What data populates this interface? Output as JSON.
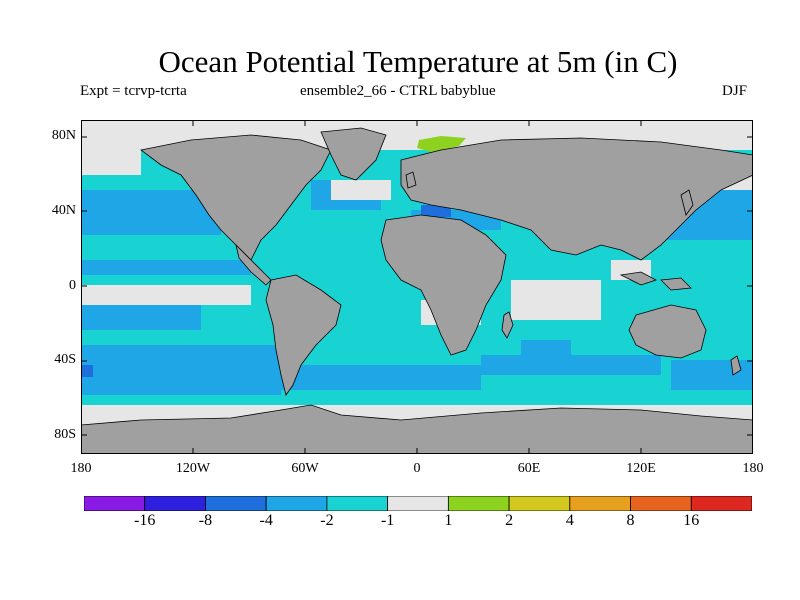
{
  "title": "Ocean Potential Temperature at 5m (in C)",
  "subtitle_left": "Expt = tcrvp-tcrta",
  "subtitle_center": "ensemble2_66 - CTRL babyblue",
  "subtitle_right": "DJF",
  "lat_ticks": [
    "80N",
    "40N",
    "0",
    "40S",
    "80S"
  ],
  "lon_ticks": [
    "180",
    "120W",
    "60W",
    "0",
    "60E",
    "120E",
    "180"
  ],
  "colors": {
    "land": "#a0a0a0",
    "coast": "#000000",
    "ocean_neutral": "#e6e6e6"
  },
  "colorbar": {
    "labels": [
      "-16",
      "-8",
      "-4",
      "-2",
      "-1",
      "1",
      "2",
      "4",
      "8",
      "16"
    ],
    "colors": [
      "#8a1ae6",
      "#2f20e0",
      "#1e6fdc",
      "#1ea6e6",
      "#19d2d2",
      "#e6e6e6",
      "#8cd21e",
      "#d2c81e",
      "#e6a01e",
      "#e6641e",
      "#dc281e"
    ]
  }
}
